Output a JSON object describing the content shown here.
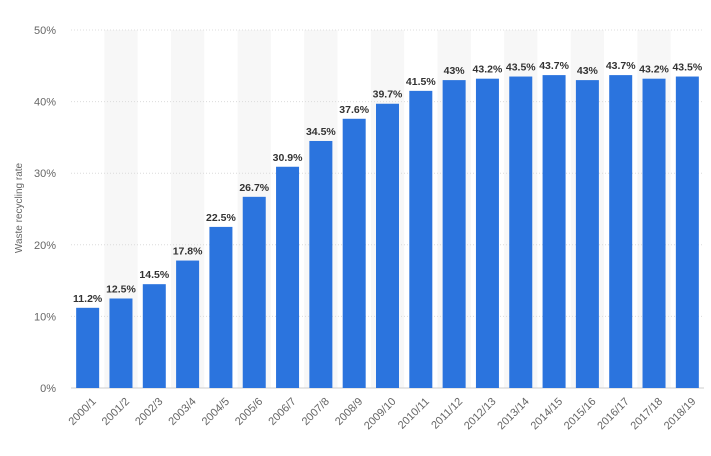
{
  "chart_data": {
    "type": "bar",
    "ylabel": "Waste recycling rate",
    "xlabel": "",
    "ylim": [
      0,
      50
    ],
    "yticks": [
      "0%",
      "10%",
      "20%",
      "30%",
      "40%",
      "50%"
    ],
    "categories": [
      "2000/1",
      "2001/2",
      "2002/3",
      "2003/4",
      "2004/5",
      "2005/6",
      "2006/7",
      "2007/8",
      "2008/9",
      "2009/10",
      "2010/11",
      "2011/12",
      "2012/13",
      "2013/14",
      "2014/15",
      "2015/16",
      "2016/17",
      "2017/18",
      "2018/19"
    ],
    "values": [
      11.2,
      12.5,
      14.5,
      17.8,
      22.5,
      26.7,
      30.9,
      34.5,
      37.6,
      39.7,
      41.5,
      43,
      43.2,
      43.5,
      43.7,
      43,
      43.7,
      43.2,
      43.5
    ],
    "data_labels": [
      "11.2%",
      "12.5%",
      "14.5%",
      "17.8%",
      "22.5%",
      "26.7%",
      "30.9%",
      "34.5%",
      "37.6%",
      "39.7%",
      "41.5%",
      "43%",
      "43.2%",
      "43.5%",
      "43.7%",
      "43%",
      "43.7%",
      "43.2%",
      "43.5%"
    ],
    "bar_color": "#2b74de",
    "band_color": "#f7f7f7",
    "grid": true,
    "legend": "none"
  }
}
